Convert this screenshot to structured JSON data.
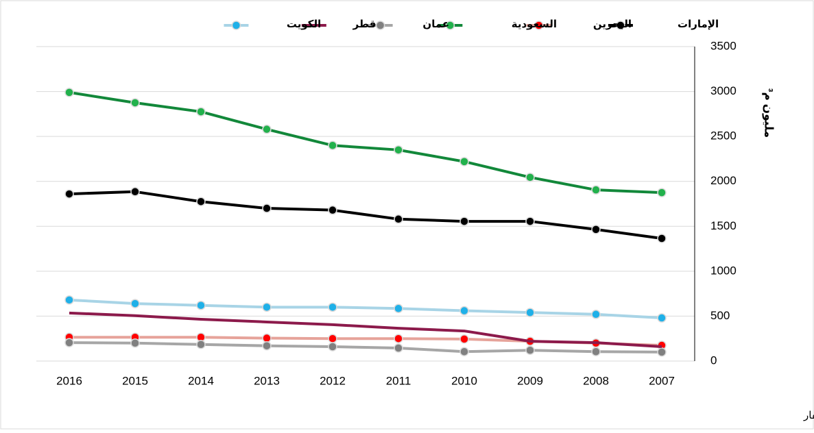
{
  "chart_data": {
    "type": "line",
    "y_label": "مليون م³",
    "note": "بيانات عمان لا تشمل محافظة ظفار",
    "categories": [
      "2016",
      "2015",
      "2014",
      "2013",
      "2012",
      "2011",
      "2010",
      "2009",
      "2008",
      "2007"
    ],
    "ylim": [
      0,
      3500
    ],
    "yticks": [
      0,
      500,
      1000,
      1500,
      2000,
      2500,
      3000,
      3500
    ],
    "grid": true,
    "series": [
      {
        "name": "الإمارات",
        "color": "#000000",
        "marker_color": "#000000",
        "values": [
          1860,
          1885,
          1775,
          1700,
          1680,
          1580,
          1555,
          1555,
          1465,
          1365
        ]
      },
      {
        "name": "البحرين",
        "color": "#e6a39a",
        "marker_color": "#ff0000",
        "values": [
          265,
          265,
          265,
          255,
          250,
          250,
          245,
          220,
          200,
          175
        ]
      },
      {
        "name": "السعودية",
        "color": "#12883a",
        "marker_color": "#22b14c",
        "values": [
          2990,
          2875,
          2775,
          2580,
          2400,
          2350,
          2220,
          2045,
          1905,
          1875
        ]
      },
      {
        "name": "عمان",
        "color": "#a6a6a6",
        "marker_color": "#808080",
        "values": [
          205,
          200,
          185,
          170,
          160,
          145,
          105,
          120,
          105,
          100
        ]
      },
      {
        "name": "قطر",
        "color": "#8c1a4b",
        "marker_color": null,
        "values": [
          535,
          505,
          465,
          435,
          405,
          365,
          335,
          220,
          205,
          160
        ]
      },
      {
        "name": "الكويت",
        "color": "#a8d4e6",
        "marker_color": "#1fb0e8",
        "values": [
          680,
          640,
          620,
          600,
          600,
          585,
          560,
          540,
          520,
          480
        ]
      }
    ]
  }
}
